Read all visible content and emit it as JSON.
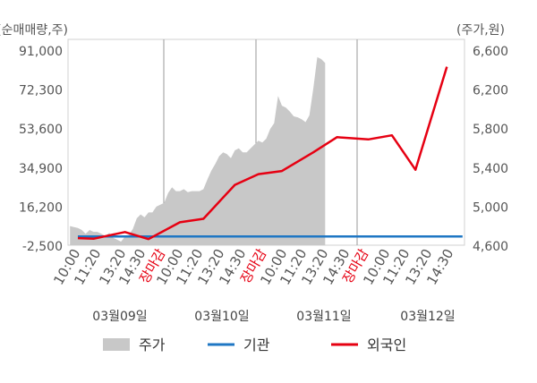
{
  "chart_data": {
    "type": "line",
    "left_axis_unit": "(순매매량,주)",
    "right_axis_unit": "(주가,원)",
    "left_axis": {
      "ticks": [
        "91,000",
        "72,300",
        "53,600",
        "34,900",
        "16,200",
        "-2,500"
      ],
      "range": [
        -2500,
        91000
      ]
    },
    "right_axis": {
      "ticks": [
        "6,600",
        "6,200",
        "5,800",
        "5,400",
        "5,000",
        "4,600"
      ],
      "range": [
        4600,
        6600
      ]
    },
    "days": [
      "03월09일",
      "03월10일",
      "03월11일",
      "03월12일"
    ],
    "time_labels": [
      [
        "10:00",
        "11:20",
        "13:20",
        "14:30",
        "장마감"
      ],
      [
        "10:00",
        "11:20",
        "13:20",
        "14:30",
        "장마감"
      ],
      [
        "10:00",
        "11:20",
        "13:20",
        "14:30",
        "장마감"
      ],
      [
        "10:00",
        "11:20",
        "13:20",
        "14:30"
      ]
    ],
    "close_label": "장마감",
    "series": [
      {
        "name": "주가",
        "kind": "area",
        "axis": "right",
        "color": "#c8c8c8",
        "slots": [
          0,
          1,
          2,
          3,
          4,
          5,
          6,
          7,
          8,
          9,
          10,
          11,
          12,
          13,
          14,
          15,
          16,
          17,
          18,
          19,
          20,
          21,
          22,
          23,
          24,
          25,
          26,
          27,
          28,
          29,
          30,
          31,
          32,
          33,
          34,
          35,
          36,
          37,
          38,
          39,
          40,
          41,
          42,
          43,
          44,
          45,
          46,
          47,
          48,
          49,
          50,
          51,
          52,
          53,
          54,
          55,
          56,
          57,
          58,
          59,
          60,
          61,
          62,
          63,
          64,
          65
        ],
        "values": [
          4760,
          4750,
          4740,
          4720,
          4680,
          4720,
          4700,
          4700,
          4680,
          4660,
          4690,
          4640,
          4620,
          4600,
          4650,
          4670,
          4730,
          4840,
          4880,
          4850,
          4900,
          4900,
          4960,
          4980,
          5000,
          5100,
          5160,
          5120,
          5120,
          5140,
          5110,
          5120,
          5120,
          5120,
          5140,
          5240,
          5330,
          5400,
          5480,
          5520,
          5500,
          5460,
          5540,
          5560,
          5520,
          5520,
          5560,
          5600,
          5640,
          5620,
          5660,
          5760,
          5820,
          6100,
          6000,
          5980,
          5940,
          5890,
          5880,
          5860,
          5830,
          5900,
          6180,
          6500,
          6480,
          6440
        ]
      },
      {
        "name": "기관",
        "kind": "line",
        "axis": "left",
        "color": "#1f77c4",
        "slots": [
          2,
          100
        ],
        "values": [
          0,
          0
        ]
      },
      {
        "name": "외국인",
        "kind": "line",
        "axis": "left",
        "color": "#e60012",
        "slots": [
          2,
          6,
          14,
          20,
          28,
          34,
          42,
          48,
          54,
          62,
          68,
          76,
          82,
          88,
          96
        ],
        "values": [
          -800,
          -1100,
          2100,
          -1300,
          6800,
          8500,
          24800,
          30000,
          31500,
          40500,
          47800,
          46700,
          48700,
          32100,
          81700
        ]
      }
    ]
  },
  "legend": [
    {
      "label": "주가",
      "swatch": "area",
      "color": "#c8c8c8"
    },
    {
      "label": "기관",
      "swatch": "line",
      "color": "#1f77c4"
    },
    {
      "label": "외국인",
      "swatch": "line",
      "color": "#e60012"
    }
  ]
}
